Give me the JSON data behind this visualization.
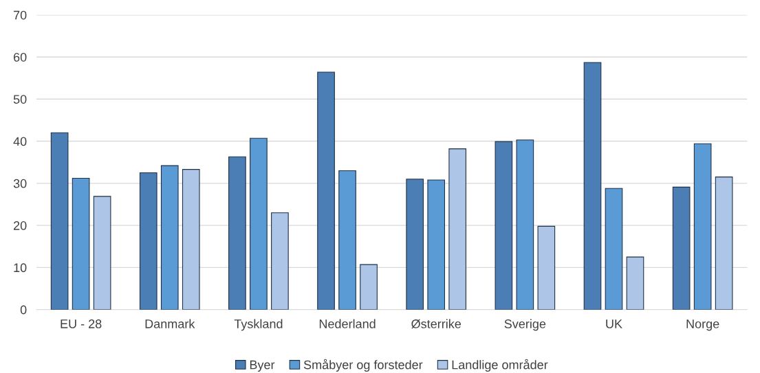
{
  "chart_data": {
    "type": "bar",
    "categories": [
      "EU - 28",
      "Danmark",
      "Tyskland",
      "Nederland",
      "Østerrike",
      "Sverige",
      "UK",
      "Norge"
    ],
    "series": [
      {
        "name": "Byer",
        "color": "#4a7eb4",
        "values": [
          42.0,
          32.5,
          36.3,
          56.4,
          31.0,
          39.9,
          58.7,
          29.1
        ]
      },
      {
        "name": "Småbyer og forsteder",
        "color": "#5b9bd5",
        "values": [
          31.2,
          34.2,
          40.7,
          33.0,
          30.8,
          40.3,
          28.8,
          39.4
        ]
      },
      {
        "name": "Landlige områder",
        "color": "#adc5e6",
        "values": [
          26.9,
          33.3,
          23.0,
          10.7,
          38.2,
          19.8,
          12.5,
          31.5
        ]
      }
    ],
    "ylim": [
      0,
      70
    ],
    "yticks": [
      0,
      10,
      20,
      30,
      40,
      50,
      60,
      70
    ],
    "grid": "y",
    "legend": "bottom"
  }
}
